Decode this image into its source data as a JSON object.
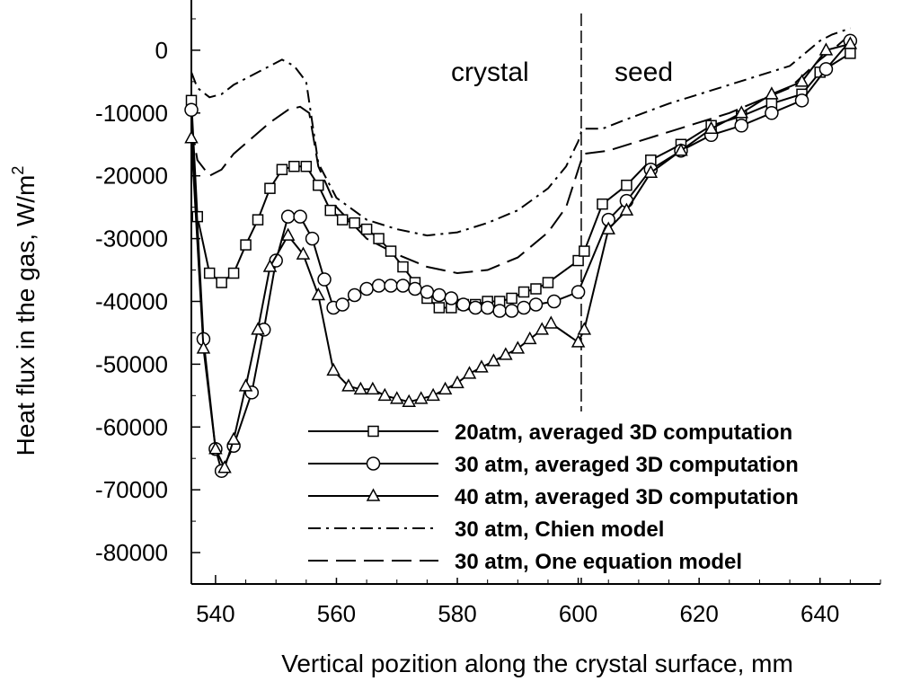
{
  "chart_data": {
    "type": "line",
    "xlabel": "Vertical pozition along the crystal surface, mm",
    "ylabel": "Heat flux in the gas, W/m",
    "ylabel_superscript": "2",
    "xlim": [
      536,
      650
    ],
    "ylim": [
      -85000,
      8000
    ],
    "xticks": [
      540,
      560,
      580,
      600,
      620,
      640
    ],
    "yticks": [
      0,
      -10000,
      -20000,
      -30000,
      -40000,
      -50000,
      -60000,
      -70000,
      -80000
    ],
    "x_tick_labels": [
      "540",
      "560",
      "580",
      "600",
      "620",
      "640"
    ],
    "y_tick_labels": [
      "0",
      "-10000",
      "-20000",
      "-30000",
      "-40000",
      "-50000",
      "-60000",
      "-70000",
      "-80000"
    ],
    "grid": false,
    "legend_position": "bottom-right",
    "annotations": {
      "crystal": "crystal",
      "seed": "seed",
      "boundary_x": 600.5
    },
    "series": [
      {
        "name": "20atm, averaged 3D computation",
        "marker": "square",
        "dash": "solid",
        "x": [
          536,
          537,
          539,
          541,
          543,
          545,
          547,
          549,
          551,
          553,
          555,
          557,
          559,
          561,
          563,
          565,
          567,
          569,
          571,
          573,
          575,
          577,
          579,
          581,
          583,
          585,
          587,
          589,
          591,
          593,
          595,
          600,
          601,
          604,
          608,
          612,
          617,
          622,
          627,
          632,
          637,
          640,
          645
        ],
        "y": [
          -8000,
          -26500,
          -35500,
          -37000,
          -35500,
          -31000,
          -27000,
          -22000,
          -19000,
          -18500,
          -18500,
          -21500,
          -25500,
          -27000,
          -27500,
          -28500,
          -30000,
          -32000,
          -34500,
          -37000,
          -39500,
          -41000,
          -41000,
          -40500,
          -40500,
          -40000,
          -40000,
          -39500,
          -38500,
          -38000,
          -37000,
          -33500,
          -32000,
          -24500,
          -21500,
          -17500,
          -15000,
          -12000,
          -10500,
          -8500,
          -7000,
          -3500,
          -500
        ]
      },
      {
        "name": "30 atm, averaged 3D computation",
        "marker": "circle",
        "dash": "solid",
        "x": [
          536,
          538,
          540,
          541,
          543,
          546,
          548,
          550,
          552,
          554,
          556,
          558,
          559.5,
          561,
          563,
          565,
          567,
          569,
          571,
          573,
          575,
          577,
          579,
          581,
          583,
          585,
          587,
          589,
          591,
          593,
          596,
          600,
          605,
          608,
          612,
          617,
          622,
          627,
          632,
          637,
          641,
          645
        ],
        "y": [
          -9500,
          -46000,
          -63500,
          -67000,
          -63000,
          -54500,
          -44500,
          -33500,
          -26500,
          -26500,
          -30000,
          -36500,
          -41000,
          -40500,
          -39000,
          -38000,
          -37500,
          -37500,
          -37500,
          -38000,
          -38500,
          -39000,
          -39500,
          -40500,
          -41000,
          -41000,
          -41500,
          -41500,
          -41000,
          -40500,
          -40000,
          -38500,
          -27000,
          -24000,
          -19000,
          -16000,
          -13500,
          -12000,
          -10000,
          -8000,
          -3000,
          1500
        ]
      },
      {
        "name": "40 atm, averaged 3D computation",
        "marker": "triangle",
        "dash": "solid",
        "x": [
          536,
          538,
          540,
          541.5,
          543,
          545,
          547,
          549,
          552,
          554.5,
          557,
          559.5,
          562,
          564,
          566,
          568,
          570,
          572,
          574,
          576,
          578,
          580,
          582,
          584,
          586,
          588,
          590,
          592,
          594,
          595.5,
          600,
          601,
          605,
          608,
          612,
          617,
          622,
          627,
          632,
          637,
          641,
          645
        ],
        "y": [
          -14000,
          -47500,
          -63500,
          -66500,
          -62000,
          -53500,
          -44500,
          -34500,
          -29500,
          -32500,
          -39000,
          -51000,
          -53500,
          -54000,
          -54000,
          -55000,
          -55500,
          -56000,
          -55500,
          -55000,
          -54000,
          -53000,
          -51500,
          -50500,
          -49500,
          -48500,
          -47500,
          -46000,
          -44500,
          -43500,
          -46500,
          -44500,
          -28500,
          -25500,
          -19500,
          -16000,
          -12500,
          -10000,
          -7000,
          -5000,
          0,
          1000
        ]
      },
      {
        "name": "30 atm, Chien model",
        "marker": "none",
        "dash": "dashdot",
        "x": [
          536,
          537,
          539,
          541,
          543,
          545,
          547,
          549,
          551,
          553,
          555,
          557,
          560,
          565,
          570,
          575,
          580,
          585,
          590,
          595,
          598,
          600,
          600.5,
          601,
          604,
          608,
          615,
          625,
          635,
          640,
          642,
          645
        ],
        "y": [
          -3500,
          -6000,
          -7500,
          -7000,
          -5500,
          -4500,
          -3500,
          -2500,
          -1500,
          -2500,
          -5000,
          -18000,
          -23500,
          -27000,
          -28500,
          -29500,
          -29000,
          -27500,
          -25500,
          -22000,
          -18500,
          -14500,
          -13000,
          -12500,
          -12500,
          -11000,
          -8500,
          -5500,
          -2500,
          1500,
          2500,
          3500
        ]
      },
      {
        "name": "30 atm, One equation model",
        "marker": "none",
        "dash": "dashed",
        "x": [
          536,
          537,
          539,
          541,
          543,
          546,
          549,
          552,
          554,
          555.5,
          557,
          560,
          565,
          570,
          575,
          580,
          585,
          590,
          595,
          598,
          600,
          600.5,
          601,
          605,
          615,
          625,
          635,
          640,
          642,
          645
        ],
        "y": [
          -12000,
          -17500,
          -20000,
          -19000,
          -16500,
          -14000,
          -11500,
          -9500,
          -9000,
          -10000,
          -18500,
          -25000,
          -30000,
          -32500,
          -34500,
          -35500,
          -35000,
          -33000,
          -29000,
          -25000,
          -19000,
          -17500,
          -16500,
          -16000,
          -13000,
          -10000,
          -6000,
          -1500,
          0,
          2500
        ]
      }
    ]
  }
}
